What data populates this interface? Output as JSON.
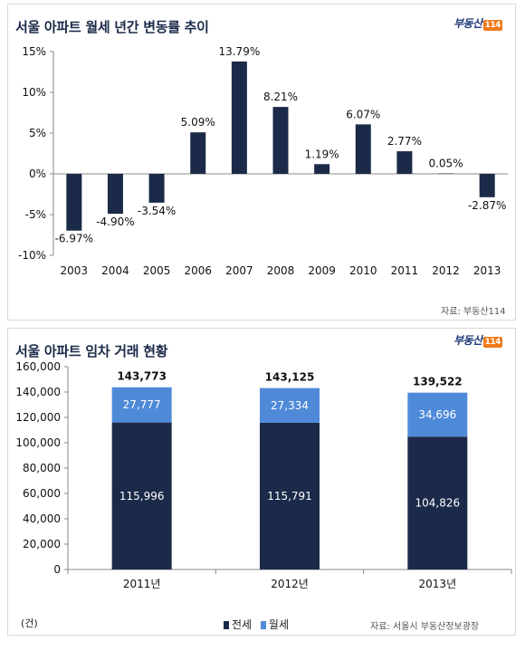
{
  "chart_data": [
    {
      "type": "bar",
      "title": "서울 아파트 월세 년간 변동률 추이",
      "categories": [
        "2003",
        "2004",
        "2005",
        "2006",
        "2007",
        "2008",
        "2009",
        "2010",
        "2011",
        "2012",
        "2013"
      ],
      "values": [
        -6.97,
        -4.9,
        -3.54,
        5.09,
        13.79,
        8.21,
        1.19,
        6.07,
        2.77,
        0.05,
        -2.87
      ],
      "value_labels": [
        "-6.97%",
        "-4.90%",
        "-3.54%",
        "5.09%",
        "13.79%",
        "8.21%",
        "1.19%",
        "6.07%",
        "2.77%",
        "0.05%",
        "-2.87%"
      ],
      "y_ticks": [
        "15%",
        "10%",
        "5%",
        "0%",
        "-5%",
        "-10%"
      ],
      "ylim": [
        -10,
        15
      ],
      "grid": false,
      "color": "#1b2a48",
      "source": "자료: 부동산114",
      "logo": "부동산",
      "logo_num": "114"
    },
    {
      "type": "bar",
      "stacked": true,
      "title": "서울 아파트 임차 거래 현황",
      "categories": [
        "2011년",
        "2012년",
        "2013년"
      ],
      "series": [
        {
          "name": "전세",
          "values": [
            115996,
            115791,
            104826
          ],
          "labels": [
            "115,996",
            "115,791",
            "104,826"
          ],
          "color": "#1b2a48"
        },
        {
          "name": "월세",
          "values": [
            27777,
            27334,
            34696
          ],
          "labels": [
            "27,777",
            "27,334",
            "34,696"
          ],
          "color": "#4f8ad8"
        }
      ],
      "totals": [
        "143,773",
        "143,125",
        "139,522"
      ],
      "y_ticks": [
        "160,000",
        "140,000",
        "120,000",
        "100,000",
        "80,000",
        "60,000",
        "40,000",
        "20,000",
        "0"
      ],
      "ylim": [
        0,
        160000
      ],
      "unit": "(건)",
      "legend_position": "bottom",
      "source": "자료: 서울시 부동산정보광장",
      "logo": "부동산",
      "logo_num": "114"
    }
  ]
}
